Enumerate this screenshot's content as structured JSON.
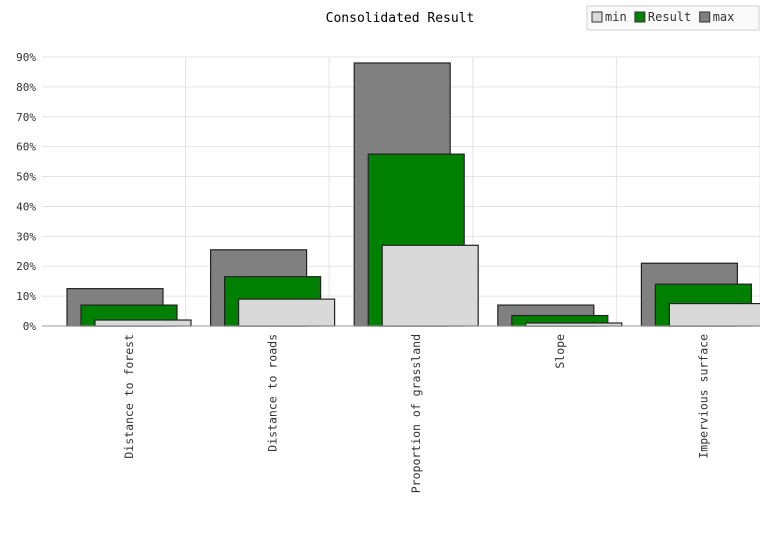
{
  "chart_data": {
    "type": "bar",
    "title": "Consolidated Result",
    "categories": [
      "Distance to forest",
      "Distance to roads",
      "Proportion of grassland",
      "Slope",
      "Impervious surface"
    ],
    "series": [
      {
        "name": "max",
        "values": [
          12.5,
          25.5,
          88,
          7,
          21
        ]
      },
      {
        "name": "Result",
        "values": [
          7,
          16.5,
          57.5,
          3.5,
          14
        ]
      },
      {
        "name": "min",
        "values": [
          2,
          9,
          27,
          1,
          7.5
        ]
      }
    ],
    "legend_order": [
      "min",
      "Result",
      "max"
    ],
    "legend_position": "top-right",
    "ylim": [
      0,
      90
    ],
    "yticks": [
      "0%",
      "10%",
      "20%",
      "30%",
      "40%",
      "50%",
      "60%",
      "70%",
      "80%",
      "90%"
    ],
    "grid": true,
    "colors": {
      "min": "#d9d9d9",
      "Result": "#008000",
      "max": "#808080"
    }
  }
}
